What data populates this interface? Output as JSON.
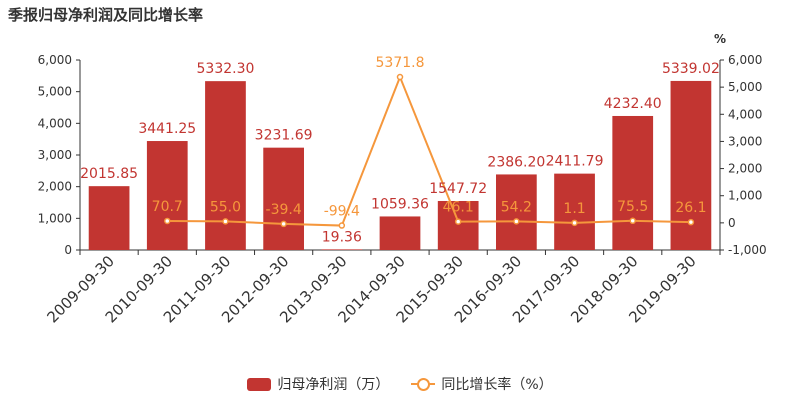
{
  "title": "季报归母净利润及同比增长率",
  "right_unit": "%",
  "colors": {
    "bar": "#c23531",
    "line": "#f5973c",
    "axis": "#333333",
    "grid": "#e6e6e6"
  },
  "chart_data": {
    "type": "bar",
    "title": "季报归母净利润及同比增长率",
    "categories": [
      "2009-09-30",
      "2010-09-30",
      "2011-09-30",
      "2012-09-30",
      "2013-09-30",
      "2014-09-30",
      "2015-09-30",
      "2016-09-30",
      "2017-09-30",
      "2018-09-30",
      "2019-09-30"
    ],
    "series": [
      {
        "name": "归母净利润（万）",
        "type": "bar",
        "axis": "left",
        "values": [
          2015.85,
          3441.25,
          5332.3,
          3231.69,
          19.36,
          1059.36,
          1547.72,
          2386.2,
          2411.79,
          4232.4,
          5339.02
        ],
        "labels": [
          "2015.85",
          "3441.25",
          "5332.30",
          "3231.69",
          "19.36",
          "1059.36",
          "1547.72",
          "2386.20",
          "2411.79",
          "4232.40",
          "5339.02"
        ]
      },
      {
        "name": "同比增长率（%）",
        "type": "line",
        "axis": "right",
        "values": [
          null,
          70.7,
          55.0,
          -39.4,
          -99.4,
          5371.8,
          46.1,
          54.2,
          1.1,
          75.5,
          26.1
        ],
        "labels": [
          "",
          "70.7",
          "55.0",
          "-39.4",
          "-99.4",
          "5371.8",
          "46.1",
          "54.2",
          "1.1",
          "75.5",
          "26.1"
        ]
      }
    ],
    "y_left": {
      "min": 0,
      "max": 6000,
      "ticks": [
        "0",
        "1,000",
        "2,000",
        "3,000",
        "4,000",
        "5,000",
        "6,000"
      ]
    },
    "y_right": {
      "min": -1000,
      "max": 6000,
      "ticks": [
        "-1,000",
        "0",
        "1,000",
        "2,000",
        "3,000",
        "4,000",
        "5,000",
        "6,000"
      ],
      "unit": "%"
    },
    "grid": false,
    "legend_position": "bottom"
  },
  "legend": {
    "bar_label": "归母净利润（万）",
    "line_label": "同比增长率（%）"
  }
}
